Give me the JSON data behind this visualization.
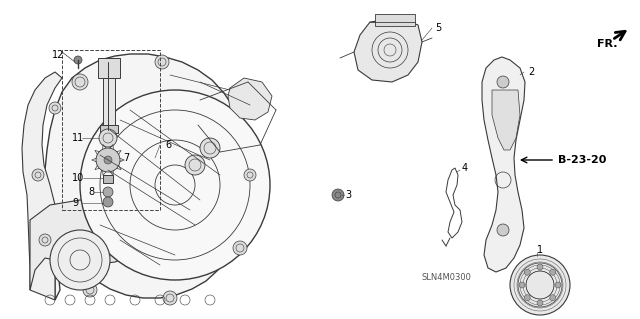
{
  "bg_color": "#ffffff",
  "fig_width": 6.4,
  "fig_height": 3.19,
  "dpi": 100,
  "line_color": "#3a3a3a",
  "label_fontsize": 7.5,
  "b23_text": "B-23-20",
  "fr_text": "FR.",
  "code_text": "SLN4M0300"
}
